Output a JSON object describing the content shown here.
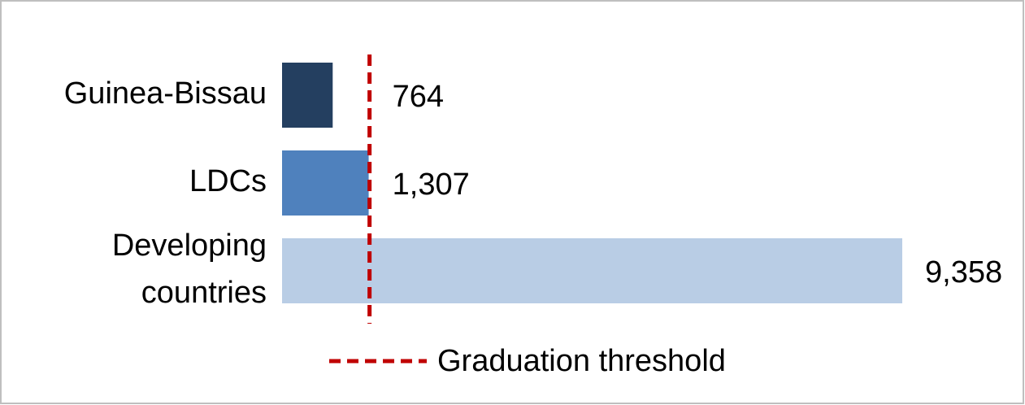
{
  "chart_data": {
    "type": "bar",
    "orientation": "horizontal",
    "categories": [
      "Guinea-Bissau",
      "LDCs",
      "Developing countries"
    ],
    "values": [
      764,
      1307,
      9358
    ],
    "value_labels": [
      "764",
      "1,307",
      "9,358"
    ],
    "colors": [
      "#243f60",
      "#4f81bd",
      "#b9cde5"
    ],
    "threshold": {
      "name": "Graduation threshold",
      "value": 1320,
      "color": "#c00000"
    }
  }
}
